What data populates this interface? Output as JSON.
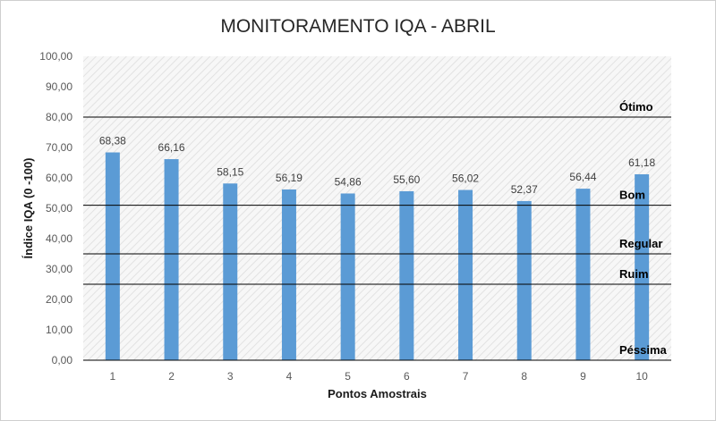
{
  "chart_data": {
    "type": "bar",
    "title": "MONITORAMENTO IQA - ABRIL",
    "xlabel": "Pontos Amostrais",
    "ylabel": "Índice IQA (0 -100)",
    "categories": [
      "1",
      "2",
      "3",
      "4",
      "5",
      "6",
      "7",
      "8",
      "9",
      "10"
    ],
    "values": [
      68.38,
      66.16,
      58.15,
      56.19,
      54.86,
      55.6,
      56.02,
      52.37,
      56.44,
      61.18
    ],
    "data_labels": [
      "68,38",
      "66,16",
      "58,15",
      "56,19",
      "54,86",
      "55,60",
      "56,02",
      "52,37",
      "56,44",
      "61,18"
    ],
    "ylim": [
      0,
      100
    ],
    "yticks": [
      0,
      10,
      20,
      30,
      40,
      50,
      60,
      70,
      80,
      90,
      100
    ],
    "ytick_labels": [
      "0,00",
      "10,00",
      "20,00",
      "30,00",
      "40,00",
      "50,00",
      "60,00",
      "70,00",
      "80,00",
      "90,00",
      "100,00"
    ],
    "bar_color": "#5b9bd5",
    "grid": false,
    "background": "hatched",
    "reference_lines": [
      {
        "value": 80,
        "label": "Ótimo"
      },
      {
        "value": 51,
        "label": "Bom"
      },
      {
        "value": 35,
        "label": "Regular"
      },
      {
        "value": 25,
        "label": "Ruim"
      },
      {
        "value": 0,
        "label": "Péssima"
      }
    ]
  }
}
